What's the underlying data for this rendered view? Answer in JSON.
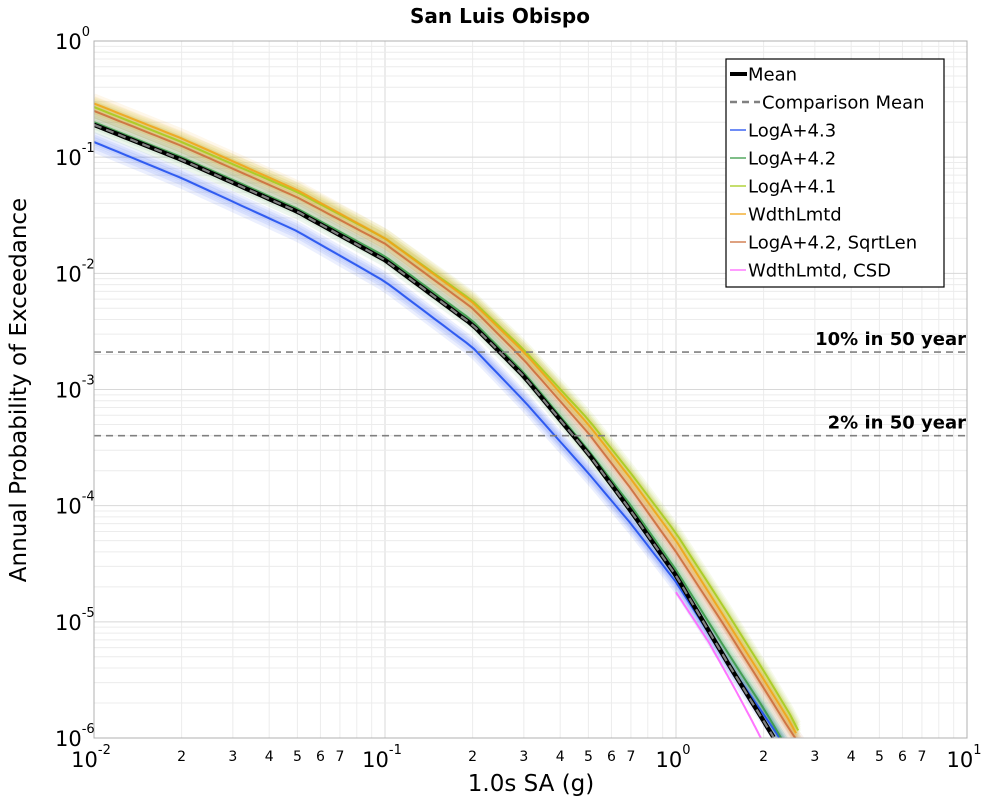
{
  "chart_data": {
    "type": "line",
    "title": "San Luis Obispo",
    "xlabel": "1.0s SA (g)",
    "ylabel": "Annual Probability of Exceedance",
    "xscale": "log",
    "yscale": "log",
    "xlim": [
      0.01,
      10
    ],
    "ylim": [
      1e-06,
      1
    ],
    "grid": true,
    "legend_position": "top-right",
    "x_ticks": {
      "major": [
        {
          "value": 0.01,
          "base": "10",
          "exp": "-2"
        },
        {
          "value": 0.1,
          "base": "10",
          "exp": "-1"
        },
        {
          "value": 1,
          "base": "10",
          "exp": "0"
        },
        {
          "value": 10,
          "base": "10",
          "exp": "1"
        }
      ],
      "minor_labels": [
        "2",
        "3",
        "4",
        "5",
        "6",
        "7"
      ]
    },
    "y_ticks": {
      "major": [
        {
          "value": 1,
          "base": "10",
          "exp": "0"
        },
        {
          "value": 0.1,
          "base": "10",
          "exp": "-1"
        },
        {
          "value": 0.01,
          "base": "10",
          "exp": "-2"
        },
        {
          "value": 0.001,
          "base": "10",
          "exp": "-3"
        },
        {
          "value": 0.0001,
          "base": "10",
          "exp": "-4"
        },
        {
          "value": 1e-05,
          "base": "10",
          "exp": "-5"
        },
        {
          "value": 1e-06,
          "base": "10",
          "exp": "-6"
        }
      ]
    },
    "reference_lines": [
      {
        "label": "10% in 50 year",
        "y": 0.0021
      },
      {
        "label": "2% in 50 year",
        "y": 0.0004
      }
    ],
    "legend": [
      {
        "label": "Mean",
        "color": "#000000",
        "style": "solid-thick"
      },
      {
        "label": "Comparison Mean",
        "color": "#808080",
        "style": "dashed"
      },
      {
        "label": "LogA+4.3",
        "color": "#1f4ff0",
        "style": "solid"
      },
      {
        "label": "LogA+4.2",
        "color": "#3a9a48",
        "style": "solid"
      },
      {
        "label": "LogA+4.1",
        "color": "#a6cc1e",
        "style": "solid"
      },
      {
        "label": "WdthLmtd",
        "color": "#f0a418",
        "style": "solid"
      },
      {
        "label": "LogA+4.2, SqrtLen",
        "color": "#cc6e3c",
        "style": "solid"
      },
      {
        "label": "WdthLmtd, CSD",
        "color": "#ff66ff",
        "style": "solid"
      }
    ],
    "series": [
      {
        "name": "Mean",
        "x": [
          0.01,
          0.02,
          0.05,
          0.1,
          0.2,
          0.3,
          0.5,
          0.7,
          1.0,
          1.5,
          2.0,
          2.2,
          2.3
        ],
        "y": [
          0.19,
          0.095,
          0.034,
          0.013,
          0.0036,
          0.0013,
          0.00028,
          9e-05,
          2.5e-05,
          4.5e-06,
          1.4e-06,
          9.5e-07,
          7.5e-07
        ]
      },
      {
        "name": "Comparison Mean",
        "x": [
          0.01,
          0.02,
          0.05,
          0.1,
          0.2,
          0.3,
          0.5,
          0.7,
          1.0,
          1.5,
          2.0,
          2.2,
          2.3
        ],
        "y": [
          0.19,
          0.095,
          0.034,
          0.013,
          0.0036,
          0.0013,
          0.00028,
          9e-05,
          2.5e-05,
          4.5e-06,
          1.4e-06,
          9.5e-07,
          7.5e-07
        ]
      },
      {
        "name": "LogA+4.3",
        "x": [
          0.01,
          0.02,
          0.05,
          0.1,
          0.2,
          0.3,
          0.5,
          0.7,
          1.0,
          1.5,
          2.0,
          2.5
        ],
        "y": [
          0.135,
          0.066,
          0.023,
          0.0085,
          0.0023,
          0.0008,
          0.00019,
          7e-05,
          2.2e-05,
          4.5e-06,
          1.6e-06,
          7e-07
        ]
      },
      {
        "name": "LogA+4.2",
        "x": [
          0.01,
          0.02,
          0.05,
          0.1,
          0.2,
          0.3,
          0.5,
          0.7,
          1.0,
          1.5,
          2.0,
          2.5
        ],
        "y": [
          0.2,
          0.1,
          0.036,
          0.014,
          0.0039,
          0.0014,
          0.0003,
          0.0001,
          2.8e-05,
          5.5e-06,
          1.8e-06,
          7e-07
        ]
      },
      {
        "name": "LogA+4.1",
        "x": [
          0.01,
          0.02,
          0.05,
          0.1,
          0.2,
          0.3,
          0.5,
          0.7,
          1.0,
          1.5,
          2.0,
          2.5,
          2.8
        ],
        "y": [
          0.27,
          0.135,
          0.05,
          0.02,
          0.0058,
          0.0022,
          0.00055,
          0.00019,
          5.8e-05,
          1.2e-05,
          3.8e-06,
          1.5e-06,
          8.5e-07
        ]
      },
      {
        "name": "WdthLmtd",
        "x": [
          0.01,
          0.02,
          0.05,
          0.1,
          0.2,
          0.3,
          0.5,
          0.7,
          1.0,
          1.5,
          2.0,
          2.5,
          2.75
        ],
        "y": [
          0.29,
          0.145,
          0.052,
          0.02,
          0.0056,
          0.0021,
          0.0005,
          0.00017,
          5e-05,
          1e-05,
          3.2e-06,
          1.3e-06,
          8e-07
        ]
      },
      {
        "name": "LogA+4.2, SqrtLen",
        "x": [
          0.01,
          0.02,
          0.05,
          0.1,
          0.2,
          0.3,
          0.5,
          0.7,
          1.0,
          1.5,
          2.0,
          2.5,
          2.7
        ],
        "y": [
          0.25,
          0.125,
          0.045,
          0.018,
          0.005,
          0.0018,
          0.00042,
          0.00014,
          4e-05,
          8.5e-06,
          2.7e-06,
          1.1e-06,
          8.5e-07
        ]
      },
      {
        "name": "WdthLmtd, CSD",
        "x": [
          1.0,
          1.3,
          1.6,
          1.8,
          2.0,
          2.1
        ],
        "y": [
          1.8e-05,
          6.6e-06,
          2.6e-06,
          1.5e-06,
          9e-07,
          7.2e-07
        ]
      }
    ]
  }
}
